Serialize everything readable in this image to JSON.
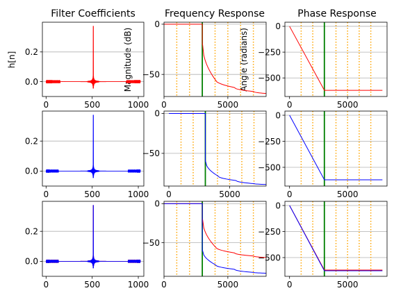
{
  "chart_data": {
    "type": "line",
    "layout": "3x3 grid of subplots",
    "column_titles": [
      "Filter Coefficients",
      "Frequency Response",
      "Phase Response"
    ],
    "ylabels": [
      "h[n]",
      "Magnitude (dB)",
      "Angle (radians)"
    ],
    "grid": "horizontal gridlines on",
    "colors": {
      "red": "#ff0000",
      "blue": "#0000ff",
      "cutoff": "#008000",
      "markers": "#ffa500",
      "grid": "#b0b0b0"
    },
    "coefficients": {
      "xlim": [
        -40,
        1060
      ],
      "ylim": [
        -0.1,
        0.4
      ],
      "xticks": [
        0,
        500,
        1000
      ],
      "yticks": [
        0.0,
        0.2
      ],
      "ytick_labels": [
        "0.0",
        "0.2"
      ],
      "n_taps": 1024,
      "center": 512,
      "peak": 0.375,
      "side_lobe": -0.05
    },
    "frequency": {
      "xticks": [
        0,
        5000
      ],
      "cutoff": 3000,
      "markers": [
        1000,
        2000,
        4000,
        5000,
        6000,
        7000
      ],
      "row_xlims": [
        [
          0,
          8000
        ],
        [
          -400,
          8000
        ],
        [
          0,
          8000
        ]
      ],
      "row_ylims": [
        [
          -72,
          2
        ],
        [
          -91,
          3
        ],
        [
          -93,
          3
        ]
      ],
      "row_yticks": [
        [
          0,
          -50
        ],
        [
          0,
          -50
        ],
        [
          0,
          -50
        ]
      ],
      "row_ytick_labels": [
        [
          "0",
          "−50"
        ],
        [
          "0",
          "−50"
        ],
        [
          "0",
          "−50"
        ]
      ],
      "passband_db": 0,
      "red_stopband_db": [
        -20,
        -55,
        -63,
        -67,
        -69
      ],
      "blue_stopband_db": [
        -60,
        -78,
        -84,
        -88,
        -89
      ],
      "stopband_x": [
        3020,
        4000,
        5500,
        7000,
        8000
      ]
    },
    "phase": {
      "xlim": [
        -400,
        8400
      ],
      "ylim": [
        -680,
        40
      ],
      "xticks": [
        0,
        5000
      ],
      "yticks": [
        0,
        -250,
        -500
      ],
      "ytick_labels": [
        "0",
        "−250",
        "−500"
      ],
      "cutoff": 3000,
      "markers": [
        1000,
        2000,
        4000,
        5000,
        6000,
        7000
      ],
      "line_points": [
        [
          0,
          0
        ],
        [
          3000,
          -620
        ],
        [
          8000,
          -620
        ]
      ],
      "row3_blue_offset": -7
    },
    "rows": [
      {
        "series": [
          {
            "color": "red"
          }
        ]
      },
      {
        "series": [
          {
            "color": "blue"
          }
        ]
      },
      {
        "series": [
          {
            "color": "red"
          },
          {
            "color": "blue"
          }
        ]
      }
    ],
    "tick_labels": {
      "x_coeff": [
        "0",
        "500",
        "1000"
      ],
      "x_freq": [
        "0",
        "5000"
      ],
      "x_phase": [
        "0",
        "5000"
      ]
    }
  }
}
